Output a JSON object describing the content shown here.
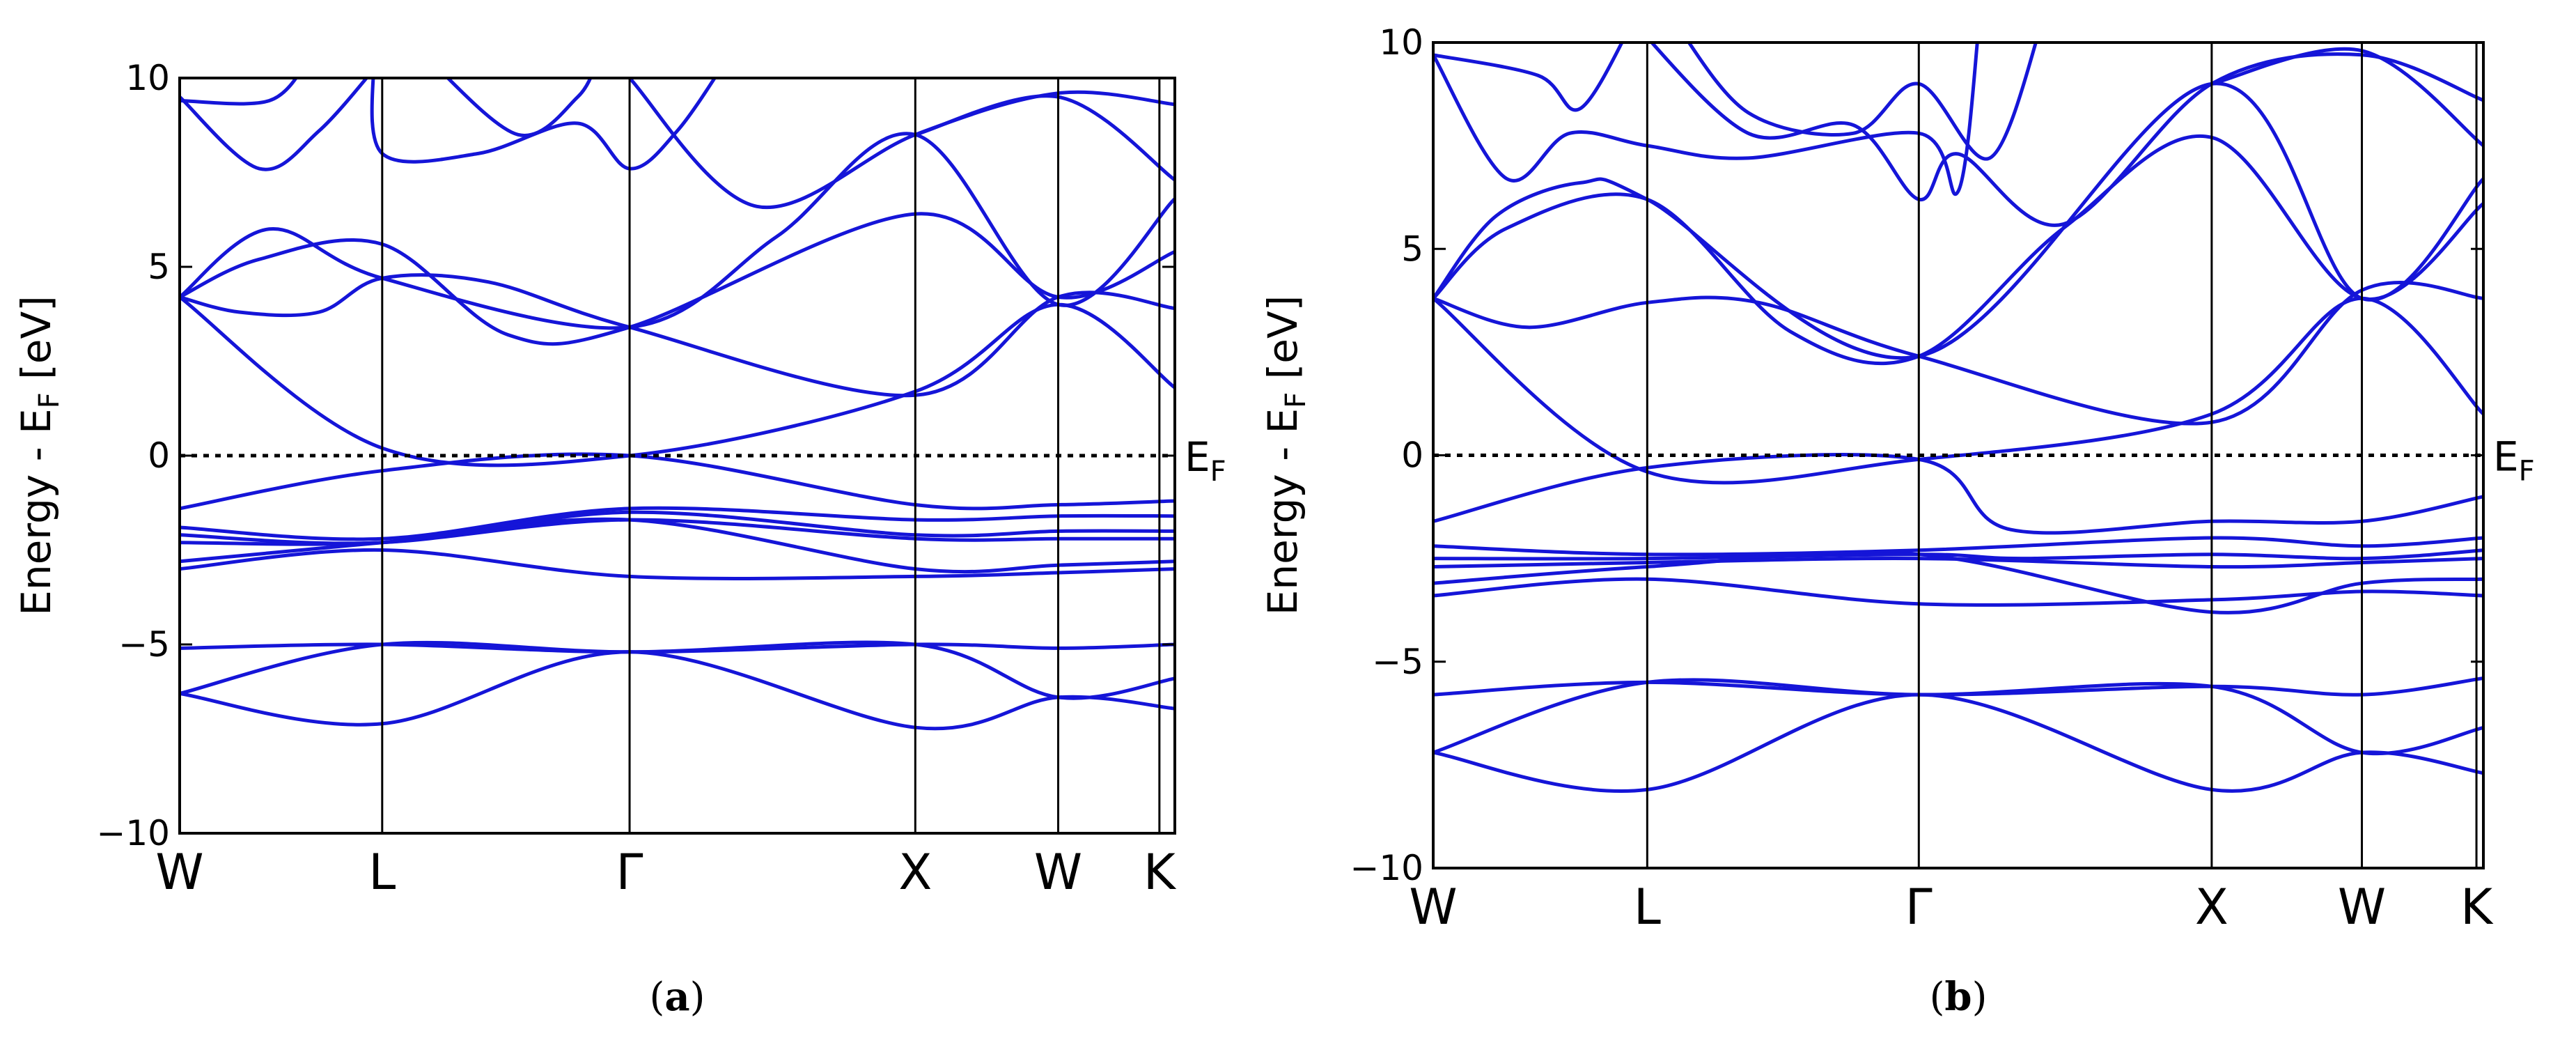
{
  "figure": {
    "panels": [
      {
        "caption_label": "a"
      },
      {
        "caption_label": "b"
      }
    ]
  },
  "chart_data": [
    {
      "type": "line",
      "panel": "a",
      "ylabel_main": "Energy - E",
      "ylabel_sub": "F",
      "ylabel_tail": " [eV]",
      "fermi_label_main": "E",
      "fermi_label_sub": "F",
      "ylim": [
        -10,
        10
      ],
      "yticks": [
        -10,
        -5,
        0,
        5,
        10
      ],
      "ytick_labels": [
        "−10",
        "−5",
        "0",
        "5",
        "10"
      ],
      "kpoints": [
        {
          "label": "W",
          "pos": 0.0
        },
        {
          "label": "L",
          "pos": 0.2035
        },
        {
          "label": "Γ",
          "pos": 0.4521
        },
        {
          "label": "X",
          "pos": 0.7392
        },
        {
          "label": "W",
          "pos": 0.8828
        },
        {
          "label": "K",
          "pos": 0.9845
        }
      ],
      "x_range": [
        0,
        1
      ],
      "fermi_level": 0,
      "line_color": "#1515d8",
      "bands": [
        [
          [
            0.0,
            -6.3
          ],
          [
            0.2035,
            -7.1
          ],
          [
            0.4521,
            -5.2
          ],
          [
            0.7392,
            -7.2
          ],
          [
            0.8828,
            -6.4
          ],
          [
            1.0,
            -6.7
          ]
        ],
        [
          [
            0.0,
            -6.3
          ],
          [
            0.2035,
            -5.0
          ],
          [
            0.4521,
            -5.2
          ],
          [
            0.7392,
            -5.0
          ],
          [
            0.8828,
            -6.4
          ],
          [
            1.0,
            -5.9
          ]
        ],
        [
          [
            0.0,
            -5.1
          ],
          [
            0.2035,
            -5.0
          ],
          [
            0.4521,
            -5.2
          ],
          [
            0.7392,
            -5.0
          ],
          [
            0.8828,
            -5.1
          ],
          [
            1.0,
            -5.0
          ]
        ],
        [
          [
            0.0,
            -3.0
          ],
          [
            0.2035,
            -2.5
          ],
          [
            0.4521,
            -3.2
          ],
          [
            0.7392,
            -3.2
          ],
          [
            0.8828,
            -3.1
          ],
          [
            1.0,
            -3.0
          ]
        ],
        [
          [
            0.0,
            -2.8
          ],
          [
            0.2035,
            -2.3
          ],
          [
            0.4521,
            -1.7
          ],
          [
            0.7392,
            -3.0
          ],
          [
            0.8828,
            -2.9
          ],
          [
            1.0,
            -2.8
          ]
        ],
        [
          [
            0.0,
            -2.3
          ],
          [
            0.2035,
            -2.3
          ],
          [
            0.4521,
            -1.7
          ],
          [
            0.7392,
            -2.2
          ],
          [
            0.8828,
            -2.2
          ],
          [
            1.0,
            -2.2
          ]
        ],
        [
          [
            0.0,
            -2.1
          ],
          [
            0.2035,
            -2.3
          ],
          [
            0.4521,
            -1.5
          ],
          [
            0.7392,
            -2.1
          ],
          [
            0.8828,
            -2.0
          ],
          [
            1.0,
            -2.0
          ]
        ],
        [
          [
            0.0,
            -1.9
          ],
          [
            0.2035,
            -2.2
          ],
          [
            0.4521,
            -1.4
          ],
          [
            0.7392,
            -1.7
          ],
          [
            0.8828,
            -1.6
          ],
          [
            1.0,
            -1.6
          ]
        ],
        [
          [
            0.0,
            -1.4
          ],
          [
            0.2035,
            -0.4
          ],
          [
            0.4521,
            0.0
          ],
          [
            0.7392,
            -1.3
          ],
          [
            0.8828,
            -1.3
          ],
          [
            1.0,
            -1.2
          ]
        ],
        [
          [
            0.0,
            4.2
          ],
          [
            0.2035,
            0.2
          ],
          [
            0.4521,
            0.0
          ],
          [
            0.7392,
            1.7
          ],
          [
            0.8828,
            4.0
          ],
          [
            1.0,
            1.8
          ]
        ],
        [
          [
            0.0,
            4.2
          ],
          [
            0.06,
            3.8
          ],
          [
            0.14,
            3.8
          ],
          [
            0.2035,
            4.7
          ],
          [
            0.31,
            4.6
          ],
          [
            0.4521,
            3.4
          ],
          [
            0.7392,
            1.6
          ],
          [
            0.8828,
            4.2
          ],
          [
            1.0,
            3.9
          ]
        ],
        [
          [
            0.0,
            4.2
          ],
          [
            0.08,
            5.2
          ],
          [
            0.2035,
            5.6
          ],
          [
            0.33,
            3.2
          ],
          [
            0.4521,
            3.4
          ],
          [
            0.7392,
            6.4
          ],
          [
            0.8828,
            4.2
          ],
          [
            1.0,
            5.4
          ]
        ],
        [
          [
            0.0,
            4.2
          ],
          [
            0.09,
            6.0
          ],
          [
            0.2035,
            4.7
          ],
          [
            0.4521,
            3.4
          ],
          [
            0.6,
            5.8
          ],
          [
            0.7392,
            8.5
          ],
          [
            0.8828,
            4.0
          ],
          [
            1.0,
            6.8
          ]
        ],
        [
          [
            0.0,
            9.5
          ],
          [
            0.08,
            7.6
          ],
          [
            0.14,
            8.6
          ],
          [
            0.2035,
            10.5
          ]
        ],
        [
          [
            0.0,
            9.4
          ],
          [
            0.09,
            9.4
          ],
          [
            0.13,
            10.5
          ]
        ],
        [
          [
            0.195,
            10.5
          ],
          [
            0.2035,
            8.0
          ],
          [
            0.3,
            8.0
          ],
          [
            0.4,
            8.8
          ],
          [
            0.4521,
            7.6
          ],
          [
            0.5,
            8.6
          ],
          [
            0.55,
            10.5
          ]
        ],
        [
          [
            0.25,
            10.5
          ],
          [
            0.34,
            8.5
          ],
          [
            0.4,
            9.5
          ],
          [
            0.42,
            10.5
          ]
        ],
        [
          [
            0.44,
            10.5
          ],
          [
            0.4521,
            10.0
          ],
          [
            0.58,
            6.6
          ],
          [
            0.7392,
            8.5
          ],
          [
            0.8828,
            9.6
          ],
          [
            1.0,
            9.3
          ]
        ],
        [
          [
            0.7392,
            8.5
          ],
          [
            0.8828,
            9.5
          ],
          [
            1.0,
            7.3
          ]
        ]
      ]
    },
    {
      "type": "line",
      "panel": "b",
      "ylabel_main": "Energy - E",
      "ylabel_sub": "F",
      "ylabel_tail": " [eV]",
      "fermi_label_main": "E",
      "fermi_label_sub": "F",
      "ylim": [
        -10,
        10
      ],
      "yticks": [
        -10,
        -5,
        0,
        5,
        10
      ],
      "ytick_labels": [
        "−10",
        "−5",
        "0",
        "5",
        "10"
      ],
      "kpoints": [
        {
          "label": "W",
          "pos": 0.0
        },
        {
          "label": "L",
          "pos": 0.2038
        },
        {
          "label": "Γ",
          "pos": 0.4624
        },
        {
          "label": "X",
          "pos": 0.7413
        },
        {
          "label": "W",
          "pos": 0.8843
        },
        {
          "label": "K",
          "pos": 0.9934
        }
      ],
      "x_range": [
        0,
        1
      ],
      "fermi_level": 0,
      "line_color": "#1515d8",
      "bands": [
        [
          [
            0.0,
            -7.2
          ],
          [
            0.2038,
            -8.1
          ],
          [
            0.4624,
            -5.8
          ],
          [
            0.7413,
            -8.1
          ],
          [
            0.8843,
            -7.2
          ],
          [
            1.0,
            -7.7
          ]
        ],
        [
          [
            0.0,
            -7.2
          ],
          [
            0.2038,
            -5.5
          ],
          [
            0.4624,
            -5.8
          ],
          [
            0.7413,
            -5.6
          ],
          [
            0.8843,
            -7.2
          ],
          [
            1.0,
            -6.6
          ]
        ],
        [
          [
            0.0,
            -5.8
          ],
          [
            0.2038,
            -5.5
          ],
          [
            0.4624,
            -5.8
          ],
          [
            0.7413,
            -5.6
          ],
          [
            0.8843,
            -5.8
          ],
          [
            1.0,
            -5.4
          ]
        ],
        [
          [
            0.0,
            -3.4
          ],
          [
            0.2038,
            -3.0
          ],
          [
            0.4624,
            -3.6
          ],
          [
            0.7413,
            -3.5
          ],
          [
            0.8843,
            -3.3
          ],
          [
            1.0,
            -3.4
          ]
        ],
        [
          [
            0.0,
            -3.1
          ],
          [
            0.2038,
            -2.7
          ],
          [
            0.4624,
            -2.4
          ],
          [
            0.7413,
            -3.8
          ],
          [
            0.8843,
            -3.1
          ],
          [
            1.0,
            -3.0
          ]
        ],
        [
          [
            0.0,
            -2.7
          ],
          [
            0.2038,
            -2.6
          ],
          [
            0.4624,
            -2.5
          ],
          [
            0.7413,
            -2.7
          ],
          [
            0.8843,
            -2.6
          ],
          [
            1.0,
            -2.5
          ]
        ],
        [
          [
            0.0,
            -2.5
          ],
          [
            0.2038,
            -2.5
          ],
          [
            0.4624,
            -2.4
          ],
          [
            0.56,
            -2.5
          ],
          [
            0.7413,
            -2.4
          ],
          [
            0.8843,
            -2.5
          ],
          [
            1.0,
            -2.3
          ]
        ],
        [
          [
            0.0,
            -2.2
          ],
          [
            0.2038,
            -2.4
          ],
          [
            0.4624,
            -2.3
          ],
          [
            0.7413,
            -2.0
          ],
          [
            0.8843,
            -2.2
          ],
          [
            1.0,
            -2.0
          ]
        ],
        [
          [
            0.0,
            -1.6
          ],
          [
            0.2038,
            -0.3
          ],
          [
            0.4624,
            -0.1
          ],
          [
            0.55,
            -1.8
          ],
          [
            0.7413,
            -1.6
          ],
          [
            0.8843,
            -1.6
          ],
          [
            1.0,
            -1.0
          ]
        ],
        [
          [
            0.0,
            3.8
          ],
          [
            0.2038,
            -0.4
          ],
          [
            0.4624,
            -0.1
          ],
          [
            0.7413,
            1.0
          ],
          [
            0.8843,
            3.8
          ],
          [
            1.0,
            1.0
          ]
        ],
        [
          [
            0.0,
            3.8
          ],
          [
            0.09,
            3.1
          ],
          [
            0.2038,
            3.7
          ],
          [
            0.31,
            3.7
          ],
          [
            0.4624,
            2.4
          ],
          [
            0.7413,
            0.8
          ],
          [
            0.8843,
            4.0
          ],
          [
            1.0,
            3.8
          ]
        ],
        [
          [
            0.0,
            3.8
          ],
          [
            0.07,
            5.5
          ],
          [
            0.2038,
            6.2
          ],
          [
            0.34,
            3.0
          ],
          [
            0.4624,
            2.4
          ],
          [
            0.6,
            5.5
          ],
          [
            0.7413,
            7.7
          ],
          [
            0.8843,
            3.8
          ],
          [
            1.0,
            6.1
          ]
        ],
        [
          [
            0.0,
            3.8
          ],
          [
            0.06,
            5.8
          ],
          [
            0.14,
            6.6
          ],
          [
            0.2038,
            6.2
          ],
          [
            0.4624,
            2.4
          ],
          [
            0.7413,
            9.0
          ],
          [
            0.8843,
            3.8
          ],
          [
            1.0,
            6.7
          ]
        ],
        [
          [
            0.0,
            9.7
          ],
          [
            0.07,
            6.7
          ],
          [
            0.13,
            7.8
          ],
          [
            0.2038,
            7.5
          ],
          [
            0.3,
            7.2
          ],
          [
            0.4624,
            7.8
          ],
          [
            0.5,
            6.4
          ],
          [
            0.52,
            10.5
          ]
        ],
        [
          [
            0.0,
            9.7
          ],
          [
            0.1,
            9.2
          ],
          [
            0.14,
            8.4
          ],
          [
            0.19,
            10.5
          ]
        ],
        [
          [
            0.19,
            10.5
          ],
          [
            0.3,
            7.8
          ],
          [
            0.4,
            8.0
          ],
          [
            0.4624,
            6.2
          ],
          [
            0.5,
            7.3
          ],
          [
            0.6,
            5.6
          ],
          [
            0.7413,
            9.0
          ],
          [
            0.8843,
            9.7
          ],
          [
            1.0,
            8.6
          ]
        ],
        [
          [
            0.23,
            10.5
          ],
          [
            0.3,
            8.3
          ],
          [
            0.4,
            7.8
          ],
          [
            0.4624,
            9.0
          ],
          [
            0.53,
            7.2
          ],
          [
            0.58,
            10.5
          ]
        ],
        [
          [
            0.7413,
            9.0
          ],
          [
            0.8843,
            9.8
          ],
          [
            1.0,
            7.5
          ]
        ]
      ]
    }
  ]
}
